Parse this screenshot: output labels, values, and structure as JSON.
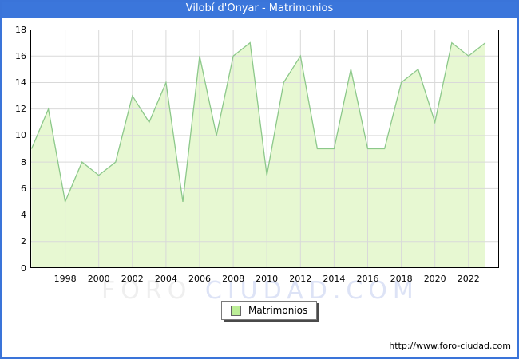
{
  "window": {
    "title": "Vilobí d'Onyar - Matrimonios",
    "footer_url": "http://www.foro-ciudad.com"
  },
  "watermark": {
    "left": "FORO",
    "right": "CIUDAD.COM"
  },
  "legend": {
    "label": "Matrimonios"
  },
  "colors": {
    "titlebar": "#3B76DB",
    "frame": "#3A74D9",
    "area_fill": "#E7F8D2",
    "line": "#8CC88A",
    "legend_swatch": "#BCEE97",
    "gridline": "#D9D9D9",
    "plot_border": "#000000"
  },
  "chart_data": {
    "type": "area",
    "title": "Vilobí d'Onyar - Matrimonios",
    "xlabel": "",
    "ylabel": "",
    "x": [
      1996,
      1997,
      1998,
      1999,
      2000,
      2001,
      2002,
      2003,
      2004,
      2005,
      2006,
      2007,
      2008,
      2009,
      2010,
      2011,
      2012,
      2013,
      2014,
      2015,
      2016,
      2017,
      2018,
      2019,
      2020,
      2021,
      2022,
      2023
    ],
    "series": [
      {
        "name": "Matrimonios",
        "values": [
          9,
          12,
          5,
          8,
          7,
          8,
          13,
          11,
          14,
          5,
          16,
          10,
          16,
          17,
          7,
          14,
          16,
          9,
          9,
          15,
          9,
          9,
          14,
          15,
          11,
          17,
          16,
          17
        ]
      }
    ],
    "ylim": [
      0,
      18
    ],
    "ytick_step": 2,
    "xticks": [
      1998,
      2000,
      2002,
      2004,
      2006,
      2008,
      2010,
      2012,
      2014,
      2016,
      2018,
      2020,
      2022
    ],
    "grid": true,
    "legend_position": "bottom-center"
  }
}
